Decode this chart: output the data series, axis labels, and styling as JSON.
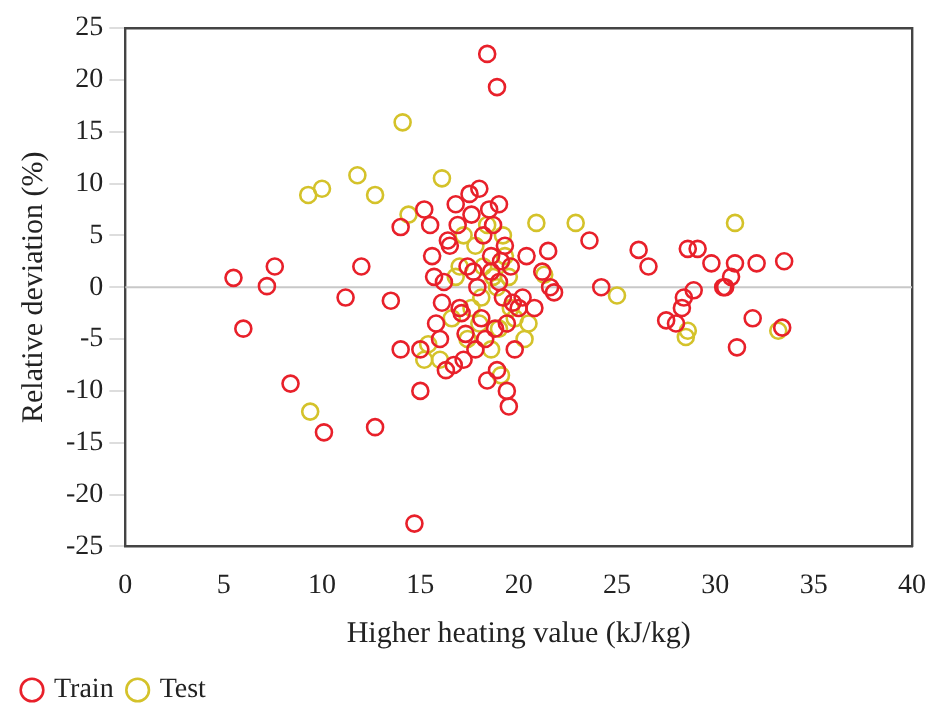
{
  "chart_data": {
    "type": "scatter",
    "xlabel": "Higher heating value (kJ/kg)",
    "ylabel": "Relative deviation (%)",
    "xlim": [
      0,
      40
    ],
    "xticks": [
      0,
      5,
      10,
      15,
      20,
      25,
      30,
      35,
      40
    ],
    "ylim": [
      -25,
      25
    ],
    "yticks": [
      -25,
      -20,
      -15,
      -10,
      -5,
      0,
      5,
      10,
      15,
      20,
      25
    ],
    "grid": false,
    "legend": "bottom left",
    "marker": "circle",
    "ref_lines": [
      {
        "axis": "y",
        "value": 0,
        "color": "#c8c8c8"
      }
    ],
    "series": [
      {
        "name": "Train",
        "color": "#e8202a",
        "x": [
          5.5,
          6,
          7.2,
          7.6,
          8.4,
          10.1,
          11.2,
          12,
          12.7,
          13.5,
          14,
          14,
          15,
          14.7,
          15.2,
          15,
          18.4,
          18.9,
          15.5,
          15.6,
          15.8,
          16,
          16.2,
          16.5,
          16.8,
          17,
          17.2,
          17.4,
          17.6,
          17.8,
          18,
          18.2,
          18.4,
          18.6,
          18.8,
          19,
          19.2,
          19.4,
          19.6,
          19.8,
          20,
          15.7,
          16.3,
          16.9,
          17.3,
          17.7,
          18.1,
          18.5,
          18.9,
          19.3,
          19.7,
          20.2,
          16.1,
          16.7,
          17.5,
          18.3,
          19.1,
          19.5,
          17.9,
          18.7,
          19.4,
          16.4,
          17.1,
          18.6,
          19,
          20.4,
          20.8,
          21.2,
          21.5,
          21.8,
          21.6,
          23.6,
          24.2,
          26.1,
          26.6,
          27.5,
          28,
          28.3,
          28.4,
          28.6,
          29.1,
          28.9,
          29.8,
          30.4,
          30.5,
          30.8,
          31,
          31.1,
          31.9,
          32.1,
          33.4,
          33.5
        ],
        "values": [
          0.9,
          -4,
          0.1,
          2,
          -9.3,
          -14,
          -1,
          2,
          -13.5,
          -1.3,
          -6,
          5.8,
          -10,
          -22.8,
          7.5,
          -6,
          22.5,
          19.3,
          6,
          3,
          -3.5,
          -5,
          0.5,
          4,
          8,
          -2,
          -7,
          2,
          7,
          -6,
          9.5,
          5,
          -9,
          3,
          -4,
          8,
          -1,
          -10,
          2,
          -6,
          -2,
          1,
          -8,
          6,
          -4.5,
          1.5,
          -3,
          7.5,
          -8,
          4,
          -1.5,
          -1,
          -1.5,
          -7.5,
          9,
          -5,
          2.5,
          -11.5,
          0,
          6,
          -3.5,
          4.5,
          -2.5,
          1.5,
          0.5,
          3,
          -2,
          1.5,
          3.5,
          -0.5,
          0,
          4.5,
          0,
          3.6,
          2,
          -3.2,
          -3.5,
          -2,
          -1,
          3.7,
          3.7,
          -0.3,
          2.3,
          0,
          0,
          1,
          2.3,
          -5.8,
          -3,
          2.3,
          -3.9,
          2.5
        ]
      },
      {
        "name": "Test",
        "color": "#d4c22a",
        "x": [
          9.3,
          10,
          11.8,
          12.7,
          14.1,
          14.4,
          9.4,
          16.1,
          15.2,
          16,
          15.4,
          20.9,
          22.9,
          25,
          28.5,
          28.6,
          31,
          33.2,
          21.3,
          20.5,
          20.3,
          16.6,
          17,
          17.4,
          17.8,
          18.1,
          18.4,
          18.7,
          19,
          19.3,
          19.6,
          17.2,
          17.6,
          18.2,
          18.6,
          18.9,
          19.2,
          19.5,
          19.8,
          16.8,
          18,
          19.1
        ],
        "values": [
          8.9,
          9.5,
          10.8,
          8.9,
          15.9,
          7,
          -12,
          10.5,
          -7,
          -7,
          -5.5,
          6.2,
          6.2,
          -0.8,
          -4.8,
          -4.2,
          6.2,
          -4.2,
          1.2,
          -3.5,
          -5,
          -3,
          2,
          -5,
          4,
          -1,
          6,
          1,
          -4,
          3,
          -2,
          5,
          -2,
          2,
          -6,
          0,
          5,
          1,
          -3,
          1,
          -3.5,
          -8.5
        ]
      }
    ]
  }
}
